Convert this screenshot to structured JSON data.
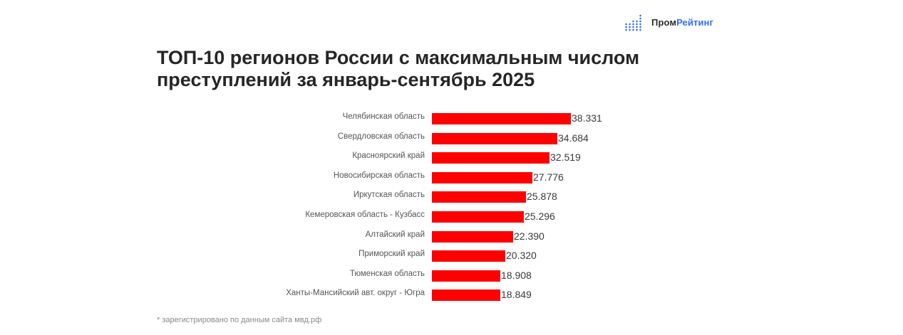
{
  "logo": {
    "part1": "Пром",
    "part2": "Рейтинг",
    "icon": "bar-dots-icon",
    "accent_color": "#2f6df6"
  },
  "title": "ТОП-10 регионов России с максимальным числом преступлений за январь-сентябрь 2025",
  "footnote": "* зарегистрировано по данным сайта мвд.рф",
  "chart_data": {
    "type": "bar",
    "orientation": "horizontal",
    "title": "ТОП-10 регионов России с максимальным числом преступлений за январь-сентябрь 2025",
    "xlabel": "",
    "ylabel": "",
    "bar_color": "#ff0000",
    "grid": false,
    "legend": null,
    "categories": [
      "Челябинская область",
      "Свердловская область",
      "Красноярский край",
      "Новосибирская область",
      "Иркутская область",
      "Кемеровская область - Кузбасс",
      "Алтайский край",
      "Приморский край",
      "Тюменская область",
      "Ханты-Мансийский авт. округ - Югра"
    ],
    "values": [
      38331,
      34684,
      32519,
      27776,
      25878,
      25296,
      22390,
      20320,
      18908,
      18849
    ],
    "value_labels": [
      "38.331",
      "34.684",
      "32.519",
      "27.776",
      "25.878",
      "25.296",
      "22.390",
      "20.320",
      "18.908",
      "18.849"
    ],
    "annotation": "* зарегистрировано по данным сайта мвд.рф"
  }
}
